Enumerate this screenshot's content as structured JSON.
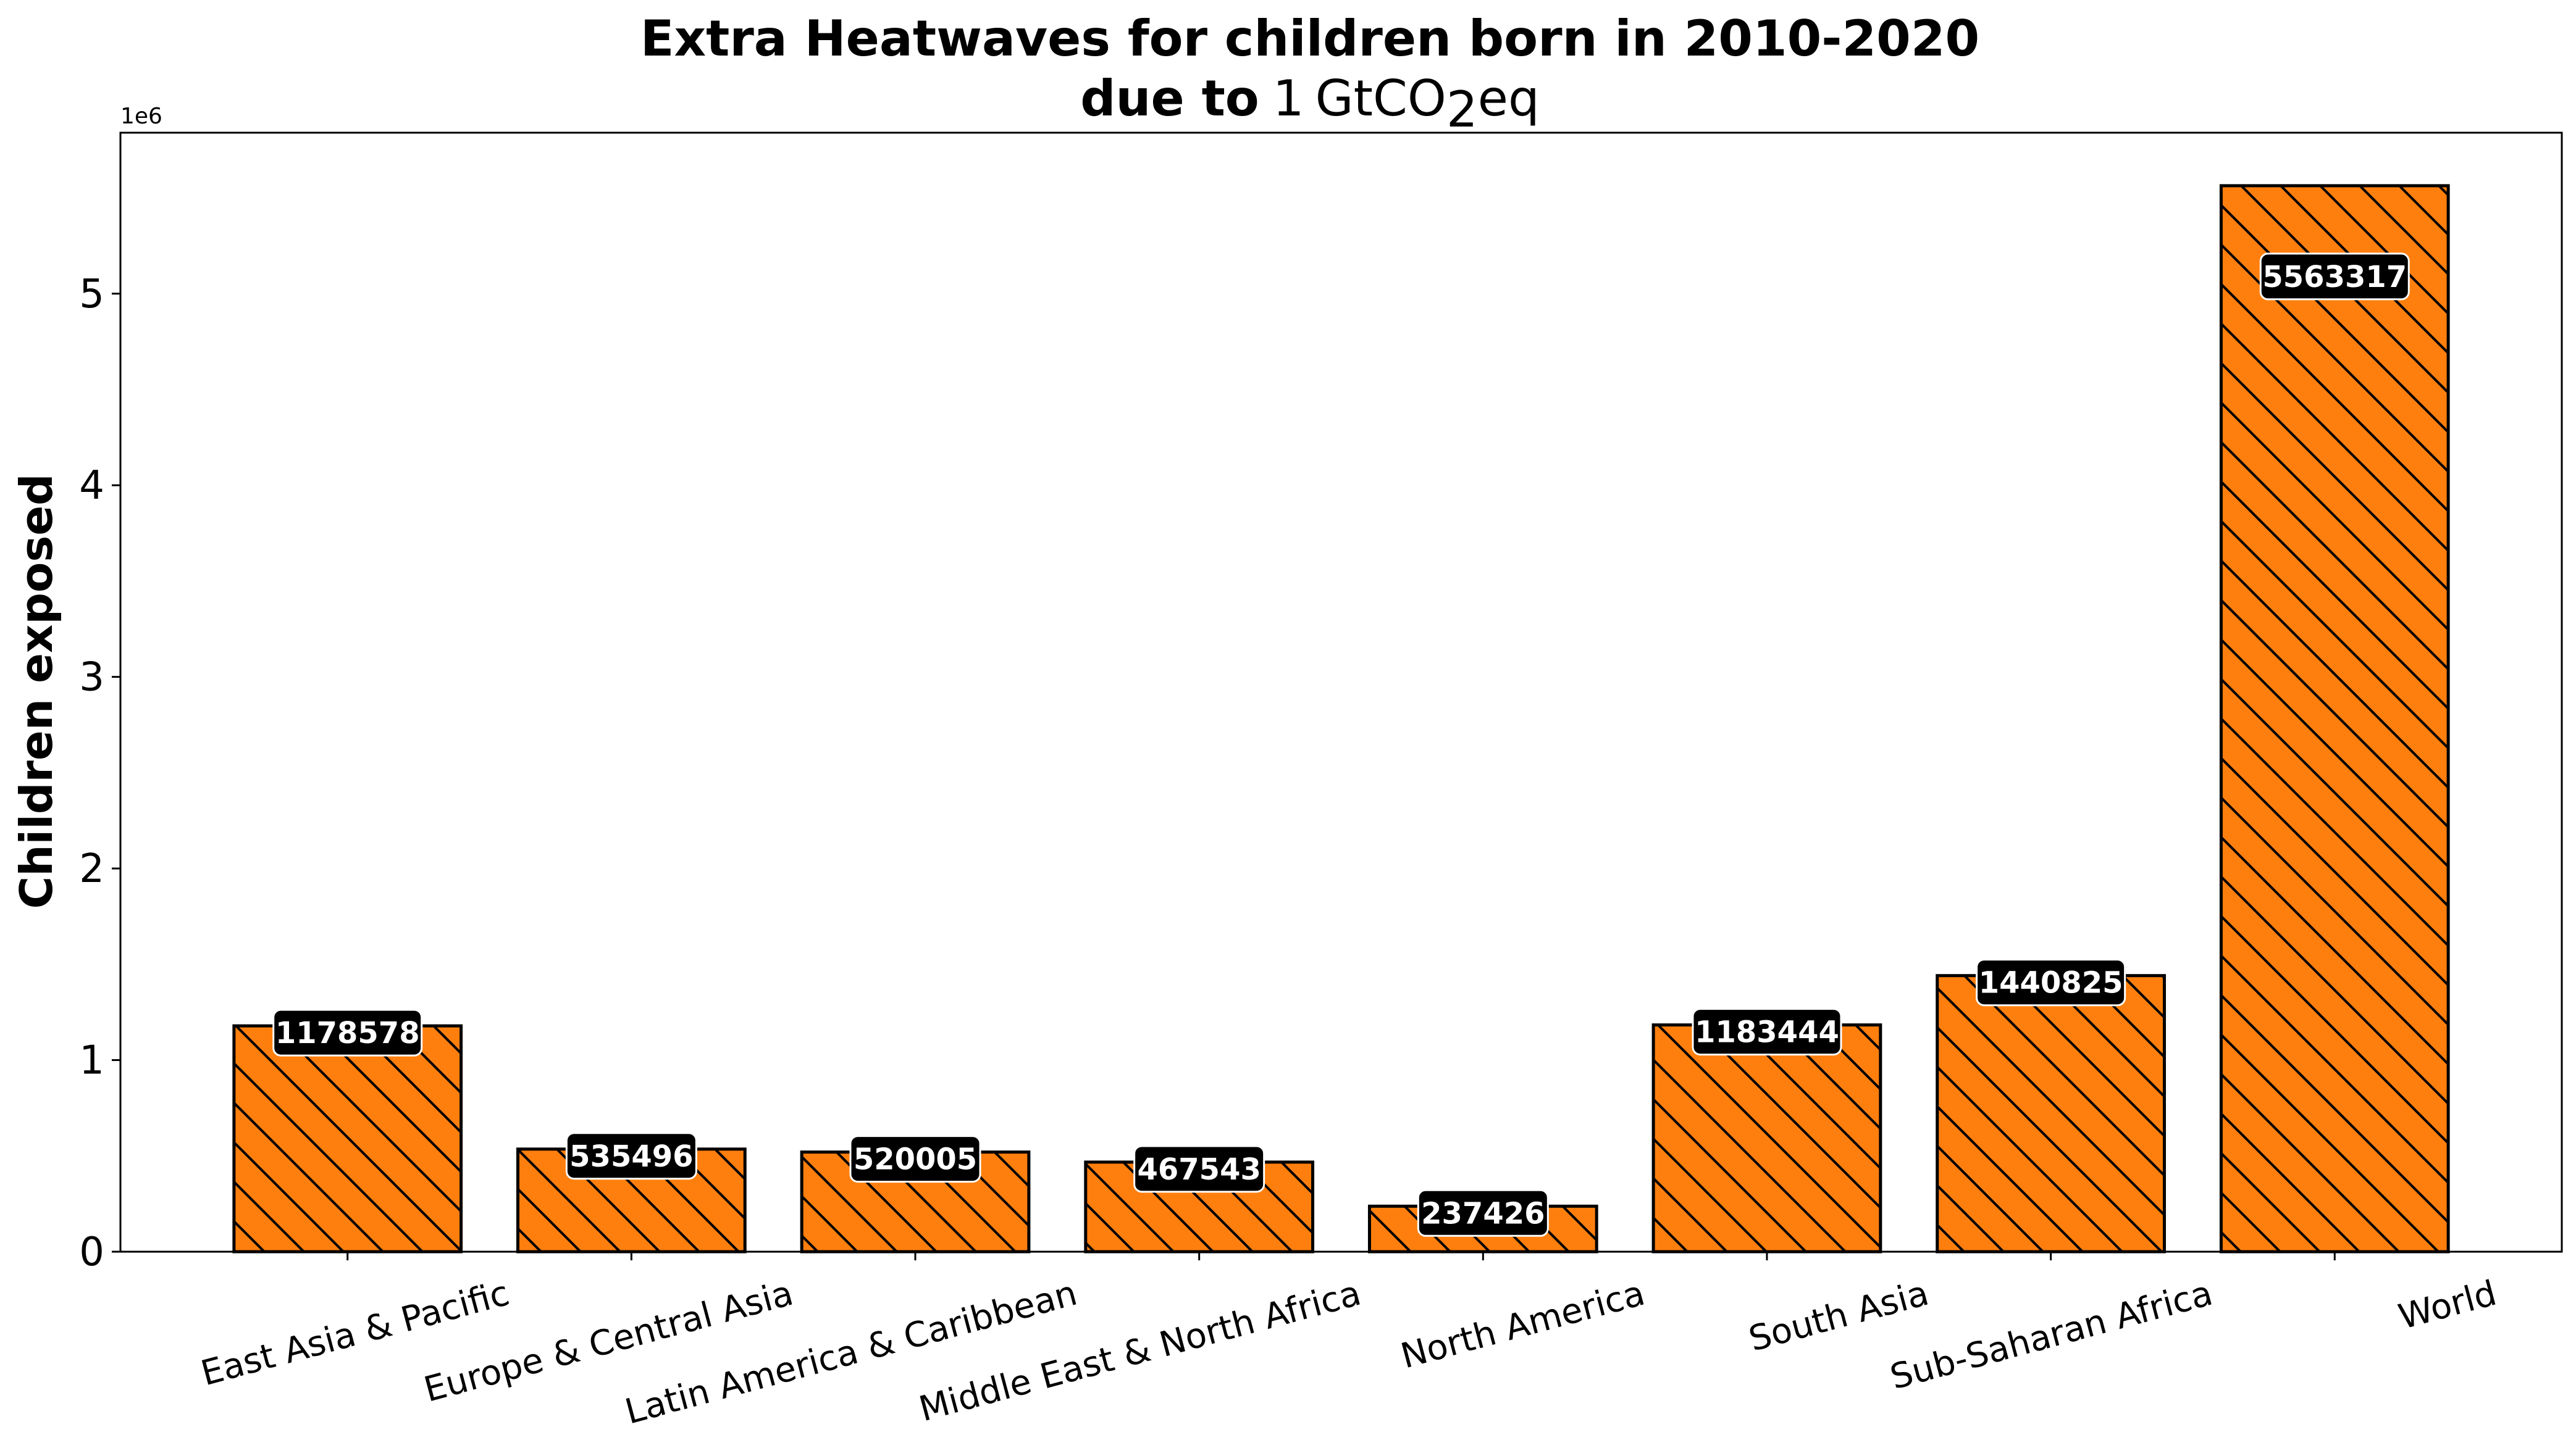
{
  "chart_data": {
    "type": "bar",
    "title_line1": "Extra Heatwaves for children born in 2010-2020",
    "title_line2_bold": "due to",
    "title_line2_math": {
      "num": "1",
      "unit": "GtCO",
      "sub": "2",
      "suffix": "eq"
    },
    "ylabel": "Children exposed",
    "xlabel": "",
    "y_offset_label": "1e6",
    "ylim": [
      0,
      5840000
    ],
    "yticks": [
      0,
      1000000,
      2000000,
      3000000,
      4000000,
      5000000
    ],
    "ytick_labels": [
      "0",
      "1",
      "2",
      "3",
      "4",
      "5"
    ],
    "categories": [
      "East Asia & Pacific",
      "Europe & Central Asia",
      "Latin America & Caribbean",
      "Middle East & North Africa",
      "North America",
      "South Asia",
      "Sub-Saharan Africa",
      "World"
    ],
    "values": [
      1178578,
      535496,
      520005,
      467543,
      237426,
      1183444,
      1440825,
      5563317
    ],
    "data_labels": [
      "1178578",
      "535496",
      "520005",
      "467543",
      "237426",
      "1183444",
      "1440825",
      "5563317"
    ],
    "bar_color": "#ff7f0e",
    "edge_color": "#000000",
    "hatch": "backslash",
    "label_box_color": "#000000",
    "label_text_color": "#ffffff",
    "grid": false,
    "legend": "none"
  }
}
